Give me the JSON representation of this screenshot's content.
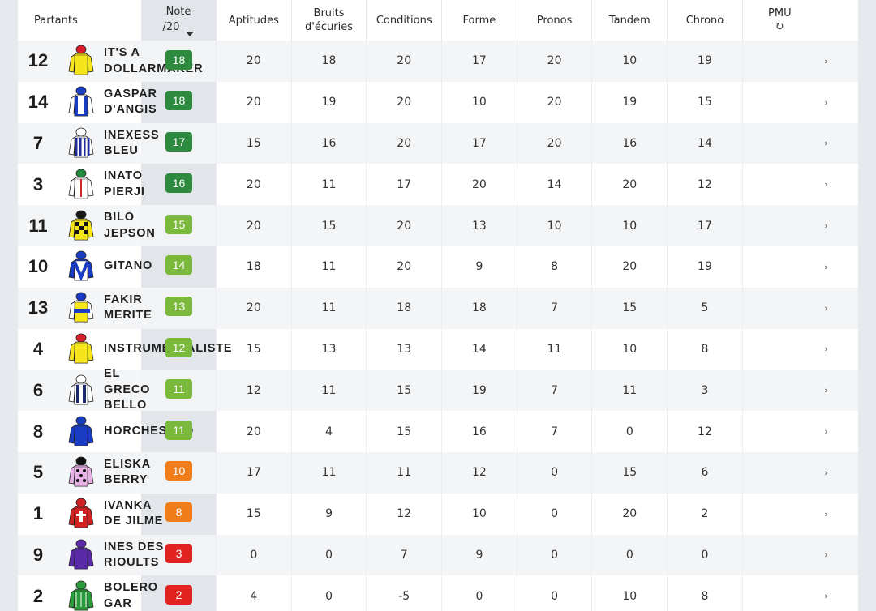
{
  "header": {
    "partants": "Partants",
    "note_line1": "Note",
    "note_line2": "/20",
    "aptitudes": "Aptitudes",
    "bruits_line1": "Bruits",
    "bruits_line2": "d'écuries",
    "conditions": "Conditions",
    "forme": "Forme",
    "pronos": "Pronos",
    "tandem": "Tandem",
    "chrono": "Chrono",
    "pmu": "PMU",
    "refresh_glyph": "↻"
  },
  "colors": {
    "dark_green": "#2e8a3f",
    "light_green": "#7ab93b",
    "orange": "#f07c1a",
    "red": "#e02321"
  },
  "rows": [
    {
      "num": "12",
      "name": "IT'S A DOLLARMAKER",
      "note": "18",
      "tier": "dark_green",
      "silk": "yellow-red-cap",
      "aptitudes": "20",
      "bruits": "18",
      "conditions": "20",
      "forme": "17",
      "pronos": "20",
      "tandem": "10",
      "chrono": "19",
      "pmu": "›"
    },
    {
      "num": "14",
      "name": "GASPAR D'ANGIS",
      "note": "18",
      "tier": "dark_green",
      "silk": "blue-white",
      "aptitudes": "20",
      "bruits": "19",
      "conditions": "20",
      "forme": "10",
      "pronos": "20",
      "tandem": "19",
      "chrono": "15",
      "pmu": "›"
    },
    {
      "num": "7",
      "name": "INEXESS BLEU",
      "note": "17",
      "tier": "dark_green",
      "silk": "blue-stripes",
      "aptitudes": "15",
      "bruits": "16",
      "conditions": "20",
      "forme": "17",
      "pronos": "20",
      "tandem": "16",
      "chrono": "14",
      "pmu": "›"
    },
    {
      "num": "3",
      "name": "INATO PIERJI",
      "note": "16",
      "tier": "dark_green",
      "silk": "white-red",
      "aptitudes": "20",
      "bruits": "11",
      "conditions": "17",
      "forme": "20",
      "pronos": "14",
      "tandem": "20",
      "chrono": "12",
      "pmu": "›"
    },
    {
      "num": "11",
      "name": "BILO JEPSON",
      "note": "15",
      "tier": "light_green",
      "silk": "yellow-checks",
      "aptitudes": "20",
      "bruits": "15",
      "conditions": "20",
      "forme": "13",
      "pronos": "10",
      "tandem": "10",
      "chrono": "17",
      "pmu": "›"
    },
    {
      "num": "10",
      "name": "GITANO",
      "note": "14",
      "tier": "light_green",
      "silk": "white-blue-v",
      "aptitudes": "18",
      "bruits": "11",
      "conditions": "20",
      "forme": "9",
      "pronos": "8",
      "tandem": "20",
      "chrono": "19",
      "pmu": "›"
    },
    {
      "num": "13",
      "name": "FAKIR MERITE",
      "note": "13",
      "tier": "light_green",
      "silk": "yellow-blue-band",
      "aptitudes": "20",
      "bruits": "11",
      "conditions": "18",
      "forme": "18",
      "pronos": "7",
      "tandem": "15",
      "chrono": "5",
      "pmu": "›"
    },
    {
      "num": "4",
      "name": "INSTRUMENTALISTE",
      "note": "12",
      "tier": "light_green",
      "silk": "yellow-red-cap",
      "aptitudes": "15",
      "bruits": "13",
      "conditions": "13",
      "forme": "14",
      "pronos": "11",
      "tandem": "10",
      "chrono": "8",
      "pmu": "›"
    },
    {
      "num": "6",
      "name": "EL GRECO BELLO",
      "note": "11",
      "tier": "light_green",
      "silk": "white-navy",
      "aptitudes": "12",
      "bruits": "11",
      "conditions": "15",
      "forme": "19",
      "pronos": "7",
      "tandem": "11",
      "chrono": "3",
      "pmu": "›"
    },
    {
      "num": "8",
      "name": "HORCHESTRO",
      "note": "11",
      "tier": "light_green",
      "silk": "blue-solid",
      "aptitudes": "20",
      "bruits": "4",
      "conditions": "15",
      "forme": "16",
      "pronos": "7",
      "tandem": "0",
      "chrono": "12",
      "pmu": "›"
    },
    {
      "num": "5",
      "name": "ELISKA BERRY",
      "note": "10",
      "tier": "orange",
      "silk": "pink-black-dots",
      "aptitudes": "17",
      "bruits": "11",
      "conditions": "11",
      "forme": "12",
      "pronos": "0",
      "tandem": "15",
      "chrono": "6",
      "pmu": "›"
    },
    {
      "num": "1",
      "name": "IVANKA DE JILME",
      "note": "8",
      "tier": "orange",
      "silk": "red-cross",
      "aptitudes": "15",
      "bruits": "9",
      "conditions": "12",
      "forme": "10",
      "pronos": "0",
      "tandem": "20",
      "chrono": "2",
      "pmu": "›"
    },
    {
      "num": "9",
      "name": "INES DES RIOULTS",
      "note": "3",
      "tier": "red",
      "silk": "purple",
      "aptitudes": "0",
      "bruits": "0",
      "conditions": "7",
      "forme": "9",
      "pronos": "0",
      "tandem": "0",
      "chrono": "0",
      "pmu": "›"
    },
    {
      "num": "2",
      "name": "BOLERO GAR",
      "note": "2",
      "tier": "red",
      "silk": "green-white",
      "aptitudes": "4",
      "bruits": "0",
      "conditions": "-5",
      "forme": "0",
      "pronos": "0",
      "tandem": "10",
      "chrono": "8",
      "pmu": "›"
    }
  ]
}
